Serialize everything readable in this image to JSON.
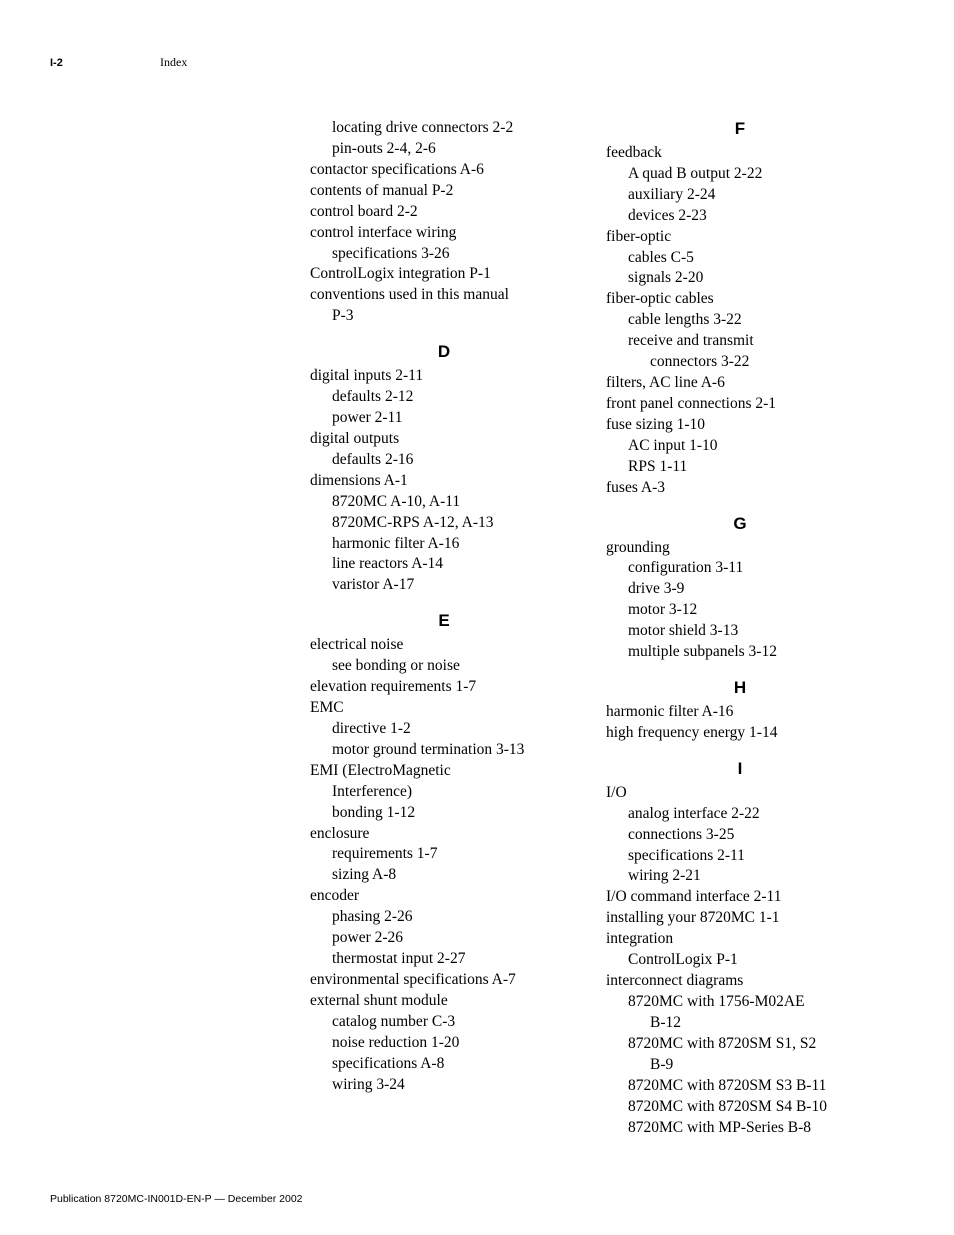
{
  "header": {
    "page_number": "I-2",
    "title": "Index"
  },
  "footer": "Publication 8720MC-IN001D-EN-P — December 2002",
  "left_col": {
    "pre": [
      {
        "t": "locating drive connectors 2-2",
        "lvl": 1
      },
      {
        "t": "pin-outs 2-4, 2-6",
        "lvl": 1
      },
      {
        "t": "contactor specifications A-6",
        "lvl": 0
      },
      {
        "t": "contents of manual P-2",
        "lvl": 0
      },
      {
        "t": "control board 2-2",
        "lvl": 0
      },
      {
        "t": "control interface wiring",
        "lvl": 0
      },
      {
        "t": "specifications 3-26",
        "lvl": 1
      },
      {
        "t": "ControlLogix integration P-1",
        "lvl": 0
      },
      {
        "t": "conventions used in this manual",
        "lvl": 0
      },
      {
        "t": "P-3",
        "lvl": 1
      }
    ],
    "D": {
      "letter": "D",
      "entries": [
        {
          "t": "digital inputs 2-11",
          "lvl": 0
        },
        {
          "t": "defaults 2-12",
          "lvl": 1
        },
        {
          "t": "power 2-11",
          "lvl": 1
        },
        {
          "t": "digital outputs",
          "lvl": 0
        },
        {
          "t": "defaults 2-16",
          "lvl": 1
        },
        {
          "t": "dimensions A-1",
          "lvl": 0
        },
        {
          "t": "8720MC A-10, A-11",
          "lvl": 1
        },
        {
          "t": "8720MC-RPS A-12, A-13",
          "lvl": 1
        },
        {
          "t": "harmonic filter A-16",
          "lvl": 1
        },
        {
          "t": "line reactors A-14",
          "lvl": 1
        },
        {
          "t": "varistor A-17",
          "lvl": 1
        }
      ]
    },
    "E": {
      "letter": "E",
      "entries": [
        {
          "t": "electrical noise",
          "lvl": 0
        },
        {
          "t": "see bonding or noise",
          "lvl": 1
        },
        {
          "t": "elevation requirements 1-7",
          "lvl": 0
        },
        {
          "t": "EMC",
          "lvl": 0
        },
        {
          "t": "directive 1-2",
          "lvl": 1
        },
        {
          "t": "motor ground termination 3-13",
          "lvl": 1
        },
        {
          "t": "EMI (ElectroMagnetic",
          "lvl": 0
        },
        {
          "t": "Interference)",
          "lvl": 1
        },
        {
          "t": "bonding 1-12",
          "lvl": 1
        },
        {
          "t": "enclosure",
          "lvl": 0
        },
        {
          "t": "requirements 1-7",
          "lvl": 1
        },
        {
          "t": "sizing A-8",
          "lvl": 1
        },
        {
          "t": "encoder",
          "lvl": 0
        },
        {
          "t": "phasing 2-26",
          "lvl": 1
        },
        {
          "t": "power 2-26",
          "lvl": 1
        },
        {
          "t": "thermostat input 2-27",
          "lvl": 1
        },
        {
          "t": "environmental specifications A-7",
          "lvl": 0
        },
        {
          "t": "external shunt module",
          "lvl": 0
        },
        {
          "t": "catalog number C-3",
          "lvl": 1
        },
        {
          "t": "noise reduction 1-20",
          "lvl": 1
        },
        {
          "t": "specifications A-8",
          "lvl": 1
        },
        {
          "t": "wiring 3-24",
          "lvl": 1
        }
      ]
    }
  },
  "right_col": {
    "F": {
      "letter": "F",
      "entries": [
        {
          "t": "feedback",
          "lvl": 0
        },
        {
          "t": "A quad B output 2-22",
          "lvl": 1
        },
        {
          "t": "auxiliary 2-24",
          "lvl": 1
        },
        {
          "t": "devices 2-23",
          "lvl": 1
        },
        {
          "t": "fiber-optic",
          "lvl": 0
        },
        {
          "t": "cables C-5",
          "lvl": 1
        },
        {
          "t": "signals 2-20",
          "lvl": 1
        },
        {
          "t": "fiber-optic cables",
          "lvl": 0
        },
        {
          "t": "cable lengths 3-22",
          "lvl": 1
        },
        {
          "t": "receive and transmit",
          "lvl": 1
        },
        {
          "t": "connectors 3-22",
          "lvl": 2
        },
        {
          "t": "filters, AC line A-6",
          "lvl": 0
        },
        {
          "t": "front panel connections 2-1",
          "lvl": 0
        },
        {
          "t": "fuse sizing 1-10",
          "lvl": 0
        },
        {
          "t": "AC input 1-10",
          "lvl": 1
        },
        {
          "t": "RPS 1-11",
          "lvl": 1
        },
        {
          "t": "fuses A-3",
          "lvl": 0
        }
      ]
    },
    "G": {
      "letter": "G",
      "entries": [
        {
          "t": "grounding",
          "lvl": 0
        },
        {
          "t": "configuration 3-11",
          "lvl": 1
        },
        {
          "t": "drive 3-9",
          "lvl": 1
        },
        {
          "t": "motor 3-12",
          "lvl": 1
        },
        {
          "t": "motor shield 3-13",
          "lvl": 1
        },
        {
          "t": "multiple subpanels 3-12",
          "lvl": 1
        }
      ]
    },
    "H": {
      "letter": "H",
      "entries": [
        {
          "t": "harmonic filter A-16",
          "lvl": 0
        },
        {
          "t": "high frequency energy 1-14",
          "lvl": 0
        }
      ]
    },
    "I": {
      "letter": "I",
      "entries": [
        {
          "t": "I/O",
          "lvl": 0
        },
        {
          "t": "analog interface 2-22",
          "lvl": 1
        },
        {
          "t": "connections 3-25",
          "lvl": 1
        },
        {
          "t": "specifications 2-11",
          "lvl": 1
        },
        {
          "t": "wiring 2-21",
          "lvl": 1
        },
        {
          "t": "I/O command interface 2-11",
          "lvl": 0
        },
        {
          "t": "installing your 8720MC 1-1",
          "lvl": 0
        },
        {
          "t": "integration",
          "lvl": 0
        },
        {
          "t": "ControlLogix P-1",
          "lvl": 1
        },
        {
          "t": "interconnect diagrams",
          "lvl": 0
        },
        {
          "t": "8720MC with 1756-M02AE",
          "lvl": 1
        },
        {
          "t": "B-12",
          "lvl": 2
        },
        {
          "t": "8720MC with 8720SM S1, S2",
          "lvl": 1
        },
        {
          "t": "B-9",
          "lvl": 2
        },
        {
          "t": "8720MC with 8720SM S3 B-11",
          "lvl": 1
        },
        {
          "t": "8720MC with 8720SM S4 B-10",
          "lvl": 1
        },
        {
          "t": "8720MC with MP-Series B-8",
          "lvl": 1
        }
      ]
    }
  }
}
